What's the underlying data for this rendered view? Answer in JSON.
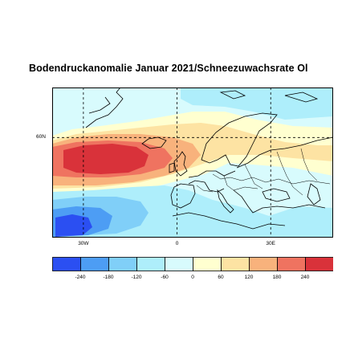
{
  "title": "Bodendruckanomalie Januar 2021/Schneezuwachsrate Ol",
  "map": {
    "lat_labels": [
      {
        "text": "60N",
        "lat": 60
      }
    ],
    "lon_labels": [
      {
        "text": "30W",
        "lon": -30
      },
      {
        "text": "0",
        "lon": 0
      },
      {
        "text": "30E",
        "lon": 30
      }
    ],
    "extent": {
      "lon_min": -40,
      "lon_max": 50,
      "lat_min": 30,
      "lat_max": 75
    },
    "grid_lines": {
      "lon": [
        -30,
        0,
        30
      ],
      "lat": [
        60
      ]
    }
  },
  "legend": {
    "labels": [
      "-240",
      "-180",
      "-120",
      "-60",
      "0",
      "60",
      "120",
      "180",
      "240"
    ],
    "colors": [
      "#2b4ff2",
      "#4d9df4",
      "#80cff8",
      "#aeeefb",
      "#d8fbfd",
      "#ffffd0",
      "#fde3a3",
      "#f8b27c",
      "#ef7360",
      "#d9323a"
    ]
  }
}
